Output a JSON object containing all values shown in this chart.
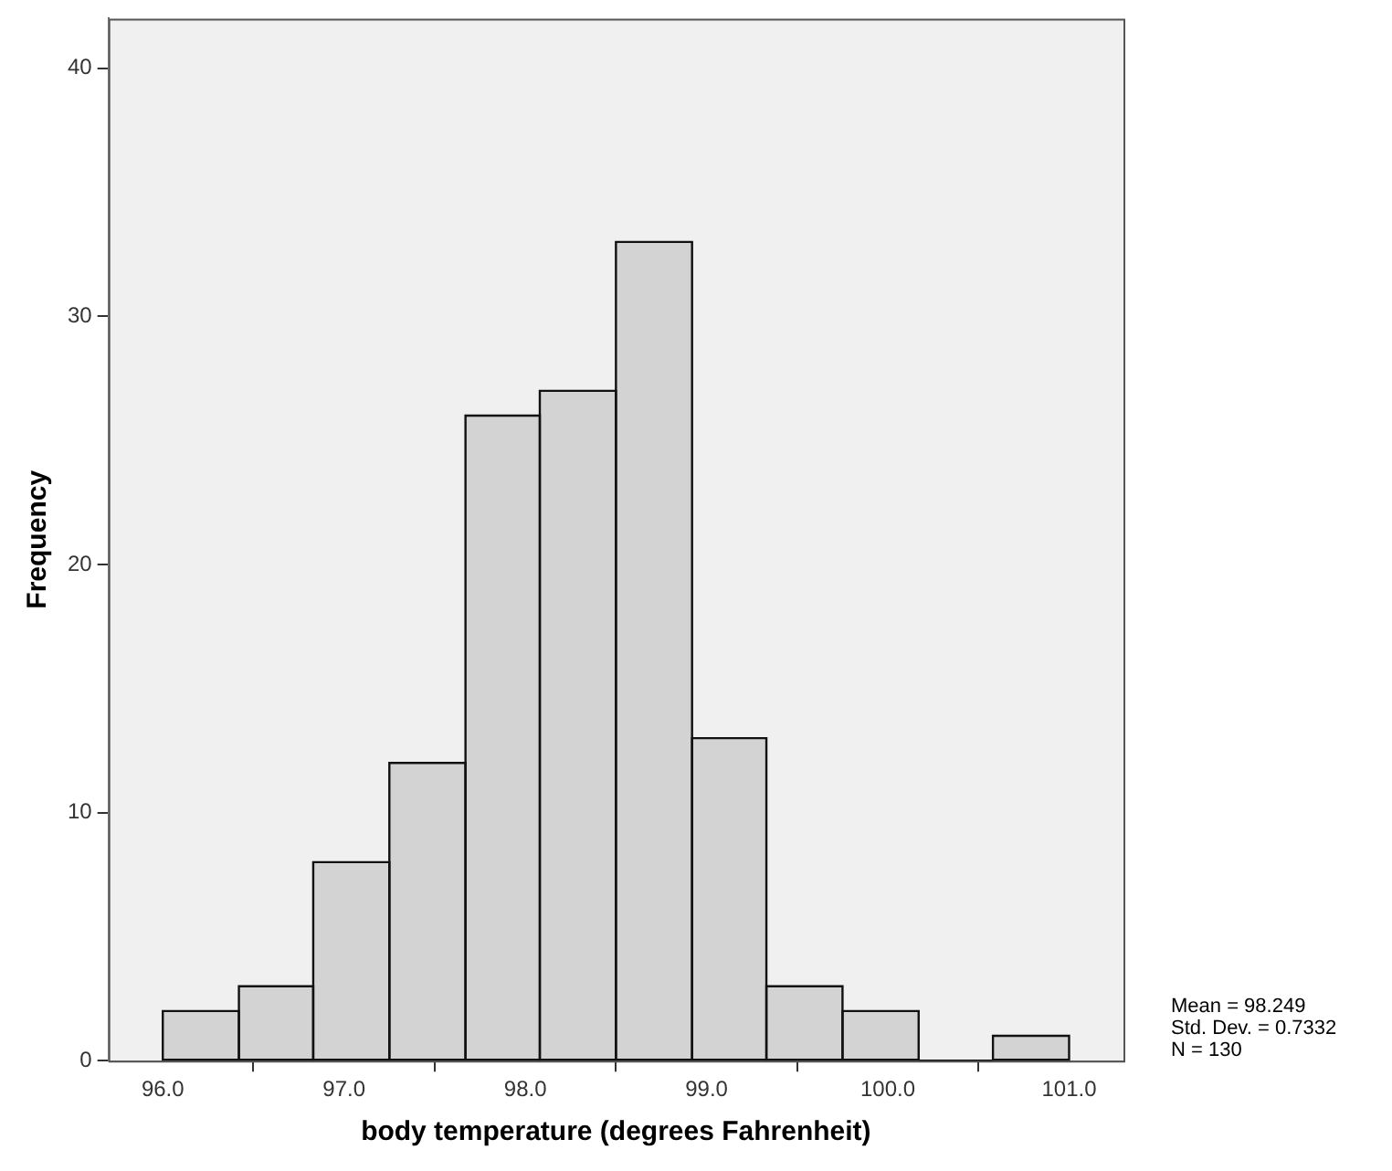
{
  "chart_data": {
    "type": "histogram",
    "xlabel": "body temperature (degrees Fahrenheit)",
    "ylabel": "Frequency",
    "bins": [
      96.0,
      96.42,
      96.83,
      97.25,
      97.67,
      98.08,
      98.5,
      98.92,
      99.33,
      99.75,
      100.17,
      100.58,
      101.0
    ],
    "values": [
      2,
      3,
      8,
      12,
      26,
      27,
      33,
      13,
      3,
      2,
      0,
      1
    ],
    "color": "#d3d3d3",
    "xlim": [
      95.7,
      101.3
    ],
    "xticks": [
      {
        "value": 96,
        "label": "96.0"
      },
      {
        "value": 97,
        "label": "97.0"
      },
      {
        "value": 98,
        "label": "98.0"
      },
      {
        "value": 99,
        "label": "99.0"
      },
      {
        "value": 100,
        "label": "100.0"
      },
      {
        "value": 101,
        "label": "101.0"
      }
    ],
    "ylim": [
      0,
      42
    ],
    "yticks": [
      0,
      10,
      20,
      30,
      40
    ],
    "grid": false,
    "legend": false,
    "annotations": [
      "Mean = 98.249",
      "Std. Dev. = 0.7332",
      "N = 130"
    ]
  }
}
